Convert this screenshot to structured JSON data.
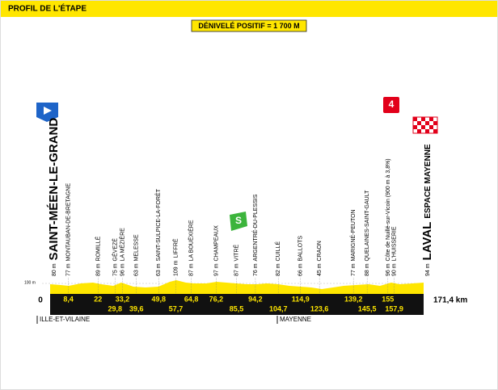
{
  "header": {
    "title": "PROFIL DE L'ÉTAPE"
  },
  "summary": "DÉNIVELÉ POSITIF = 1 700 M",
  "scale_label": "100 m",
  "start": {
    "altitude": "80 m",
    "name": "SAINT-MÉEN-LE-GRAND",
    "km": "0"
  },
  "finish": {
    "altitude": "94 m",
    "name": "LAVAL",
    "subname": "ESPACE MAYENNE",
    "km": "171,4 km",
    "badge": "4"
  },
  "sprint_badge": "S",
  "waypoints": [
    {
      "altitude": "77 m",
      "name": "MONTAUBAN-DE-BRETAGNE",
      "km": "8,4"
    },
    {
      "altitude": "89 m",
      "name": "ROMILLÉ",
      "km": "22"
    },
    {
      "altitude": "75 m",
      "name": "GÉVEZÉ",
      "km": "29,8"
    },
    {
      "altitude": "96 m",
      "name": "LA MÉZIÈRE",
      "km": "33,2"
    },
    {
      "altitude": "63 m",
      "name": "MELESSE",
      "km": "39,6"
    },
    {
      "altitude": "63 m",
      "name": "SAINT-SULPICE-LA-FORÊT",
      "km": "49,8"
    },
    {
      "altitude": "109 m",
      "name": "LIFFRÉ",
      "km": "57,7"
    },
    {
      "altitude": "87 m",
      "name": "LA BOUËXIÈRE",
      "km": "64,8"
    },
    {
      "altitude": "97 m",
      "name": "CHAMPEAUX",
      "km": "76,2"
    },
    {
      "altitude": "87 m",
      "name": "VITRÉ",
      "km": "85,5"
    },
    {
      "altitude": "76 m",
      "name": "ARGENTRÉ-DU-PLESSIS",
      "km": "94,2"
    },
    {
      "altitude": "82 m",
      "name": "CUILLÉ",
      "km": "104,7"
    },
    {
      "altitude": "66 m",
      "name": "BALLOTS",
      "km": "114,9"
    },
    {
      "altitude": "45 m",
      "name": "CRAON",
      "km": "123,6"
    },
    {
      "altitude": "77 m",
      "name": "MARIGNÉ-PEUTON",
      "km": "139,2"
    },
    {
      "altitude": "88 m",
      "name": "QUELAINES-SAINT-GAULT",
      "km": "145,5"
    },
    {
      "altitude": "96 m",
      "name": "Côte de Nuillé-sur-Vicoin (900 m à 3,8%)",
      "km": "155"
    },
    {
      "altitude": "90 m",
      "name": "L'HUISSERIE",
      "km": "157,9"
    }
  ],
  "regions": [
    {
      "name": "ILLE-ET-VILAINE"
    },
    {
      "name": "MAYENNE"
    }
  ]
}
